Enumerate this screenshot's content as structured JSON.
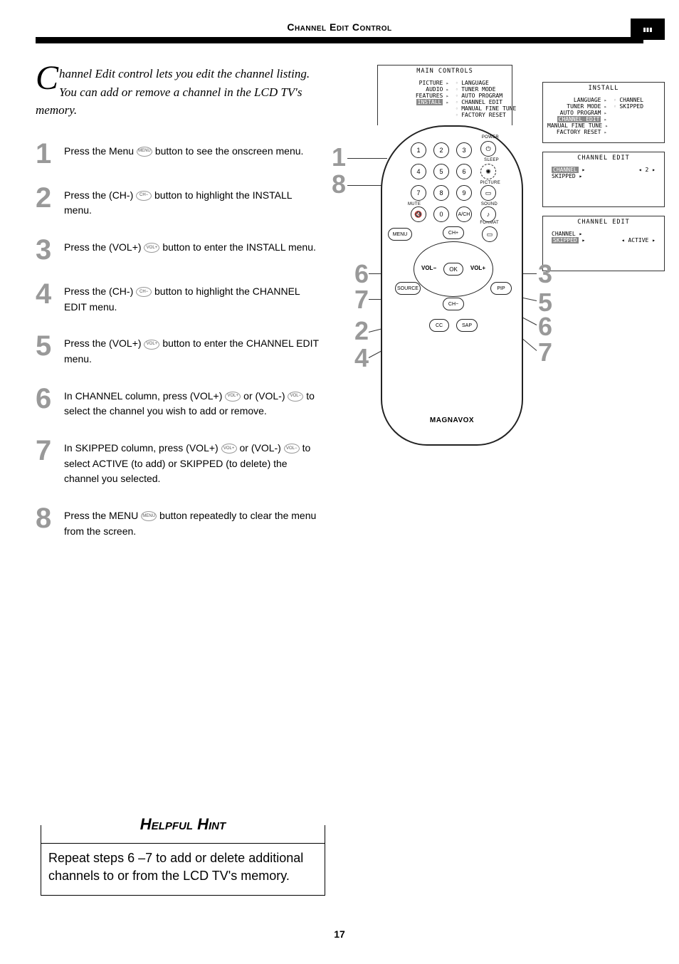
{
  "page": {
    "title": "Channel Edit Control",
    "intro_first": "C",
    "intro_rest": "hannel Edit control lets you edit the channel listing. You can add or remove a channel in the LCD TV's memory.",
    "page_number": "17"
  },
  "steps": [
    {
      "n": "1",
      "text_before": "Press the Menu ",
      "btn": "MENU",
      "text_after": " button to see the onscreen menu."
    },
    {
      "n": "2",
      "text_before": "Press the (CH-) ",
      "btn": "CH−",
      "text_after": " button to highlight the INSTALL menu."
    },
    {
      "n": "3",
      "text_before": "Press the (VOL+) ",
      "btn": "VOL+",
      "text_after": "  button to enter the INSTALL menu."
    },
    {
      "n": "4",
      "text_before": "Press the (CH-) ",
      "btn": "CH−",
      "text_after": " button to highlight the CHANNEL EDIT menu."
    },
    {
      "n": "5",
      "text_before": "Press the (VOL+) ",
      "btn": "VOL+",
      "text_after": " button to enter the CHANNEL EDIT menu."
    },
    {
      "n": "6",
      "text_before": "In CHANNEL column, press (VOL+) ",
      "btn": "VOL+",
      "text_mid": " or (VOL-) ",
      "btn2": "VOL−",
      "text_after": "  to select the channel you wish to add or remove."
    },
    {
      "n": "7",
      "text_before": "In SKIPPED column, press (VOL+) ",
      "btn": "VOL+",
      "text_mid": " or (VOL-) ",
      "btn2": "VOL−",
      "text_after": "  to select ACTIVE (to add) or SKIPPED (to delete) the channel you selected."
    },
    {
      "n": "8",
      "text_before": "Press the MENU ",
      "btn": "MENU",
      "text_after": " button repeatedly to clear the menu from the screen."
    }
  ],
  "hint": {
    "title": "Helpful Hint",
    "body": "Repeat steps 6 –7 to add or delete additional channels to or from the LCD TV's memory."
  },
  "osd_main": {
    "title": "MAIN CONTROLS",
    "left": [
      "PICTURE",
      "AUDIO",
      "FEATURES",
      "INSTALL"
    ],
    "right": [
      "LANGUAGE",
      "TUNER MODE",
      "AUTO PROGRAM",
      "CHANNEL EDIT",
      "MANUAL FINE TUNE",
      "FACTORY RESET"
    ],
    "highlight_left": "INSTALL"
  },
  "osd_install": {
    "title": "INSTALL",
    "left": [
      "LANGUAGE",
      "TUNER MODE",
      "AUTO PROGRAM",
      "CHANNEL EDIT",
      "MANUAL FINE TUNE",
      "FACTORY RESET"
    ],
    "right": [
      "CHANNEL",
      "SKIPPED"
    ],
    "highlight_left": "CHANNEL EDIT"
  },
  "osd_ch1": {
    "title": "CHANNEL EDIT",
    "rows": [
      {
        "l": "CHANNEL",
        "r": "2",
        "hl": true
      },
      {
        "l": "SKIPPED",
        "r": "",
        "hl": false
      }
    ]
  },
  "osd_ch2": {
    "title": "CHANNEL EDIT",
    "rows": [
      {
        "l": "CHANNEL",
        "r": "",
        "hl": false
      },
      {
        "l": "SKIPPED",
        "r": "ACTIVE",
        "hl": true
      }
    ]
  },
  "remote": {
    "brand": "MAGNAVOX",
    "digits": [
      "1",
      "2",
      "3",
      "4",
      "5",
      "6",
      "7",
      "8",
      "9",
      "0"
    ],
    "labels": {
      "power": "POWER",
      "sleep": "SLEEP",
      "picture": "PICTURE",
      "mute": "MUTE",
      "sound": "SOUND",
      "format": "FORMAT"
    },
    "buttons": {
      "menu": "MENU",
      "chp": "CH+",
      "chm": "CH−",
      "ok": "OK",
      "volm": "VOL−",
      "volp": "VOL+",
      "source": "SOURCE",
      "pip": "PIP",
      "cc": "CC",
      "sap": "SAP",
      "avch": "A/CH"
    }
  },
  "callouts_left": [
    "1",
    "8",
    "6",
    "7",
    "2",
    "4"
  ],
  "callouts_right": [
    "3",
    "5",
    "6",
    "7"
  ],
  "colors": {
    "step_num": "#999999",
    "text": "#000000",
    "rule": "#000000"
  }
}
